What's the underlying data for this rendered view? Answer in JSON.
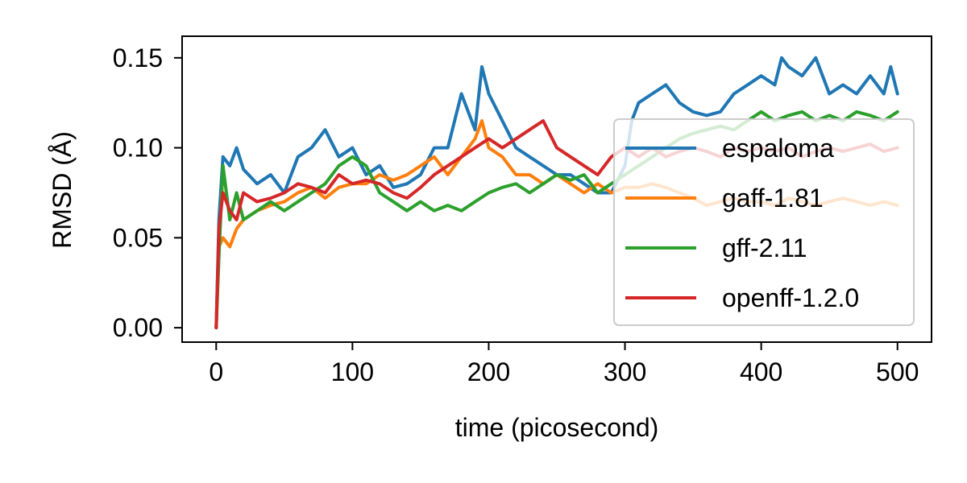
{
  "chart_data": {
    "type": "line",
    "title": "",
    "xlabel": "time (picosecond)",
    "ylabel": "RMSD (Å)",
    "xlim": [
      -25,
      525
    ],
    "ylim": [
      -0.008,
      0.162
    ],
    "xticks": [
      0,
      100,
      200,
      300,
      400,
      500
    ],
    "xtick_labels": [
      "0",
      "100",
      "200",
      "300",
      "400",
      "500"
    ],
    "yticks": [
      0.0,
      0.05,
      0.1,
      0.15
    ],
    "ytick_labels": [
      "0.00",
      "0.05",
      "0.10",
      "0.15"
    ],
    "grid": false,
    "legend_position": "right",
    "series": [
      {
        "name": "espaloma",
        "color": "#1f77b4",
        "x": [
          0,
          2,
          5,
          10,
          15,
          20,
          30,
          40,
          50,
          60,
          70,
          80,
          90,
          100,
          110,
          120,
          130,
          140,
          150,
          160,
          170,
          180,
          190,
          195,
          200,
          210,
          220,
          230,
          240,
          250,
          260,
          270,
          280,
          290,
          300,
          305,
          310,
          320,
          330,
          340,
          350,
          360,
          370,
          380,
          390,
          400,
          410,
          415,
          420,
          430,
          440,
          450,
          460,
          470,
          480,
          490,
          495,
          500
        ],
        "y": [
          0.0,
          0.06,
          0.095,
          0.09,
          0.1,
          0.088,
          0.08,
          0.085,
          0.075,
          0.095,
          0.1,
          0.11,
          0.095,
          0.1,
          0.085,
          0.09,
          0.078,
          0.08,
          0.085,
          0.1,
          0.1,
          0.13,
          0.11,
          0.145,
          0.13,
          0.115,
          0.1,
          0.095,
          0.09,
          0.085,
          0.085,
          0.08,
          0.075,
          0.075,
          0.09,
          0.115,
          0.125,
          0.13,
          0.135,
          0.125,
          0.12,
          0.118,
          0.12,
          0.13,
          0.135,
          0.14,
          0.135,
          0.15,
          0.145,
          0.14,
          0.15,
          0.13,
          0.135,
          0.13,
          0.14,
          0.13,
          0.145,
          0.13
        ]
      },
      {
        "name": "gaff-1.81",
        "color": "#ff7f0e",
        "x": [
          0,
          2,
          5,
          10,
          15,
          20,
          30,
          40,
          50,
          60,
          70,
          80,
          90,
          100,
          110,
          120,
          130,
          140,
          150,
          160,
          170,
          180,
          190,
          195,
          200,
          210,
          220,
          230,
          240,
          250,
          260,
          270,
          280,
          290,
          300,
          310,
          320,
          330,
          340,
          350,
          360,
          370,
          380,
          390,
          400,
          410,
          420,
          430,
          440,
          450,
          460,
          470,
          480,
          490,
          500
        ],
        "y": [
          0.0,
          0.045,
          0.05,
          0.045,
          0.055,
          0.06,
          0.065,
          0.068,
          0.07,
          0.075,
          0.078,
          0.072,
          0.078,
          0.08,
          0.08,
          0.085,
          0.082,
          0.085,
          0.09,
          0.095,
          0.085,
          0.095,
          0.105,
          0.115,
          0.1,
          0.095,
          0.085,
          0.085,
          0.08,
          0.085,
          0.08,
          0.075,
          0.08,
          0.075,
          0.078,
          0.078,
          0.08,
          0.078,
          0.075,
          0.072,
          0.068,
          0.07,
          0.072,
          0.07,
          0.07,
          0.068,
          0.072,
          0.07,
          0.068,
          0.07,
          0.072,
          0.07,
          0.068,
          0.07,
          0.068
        ]
      },
      {
        "name": "gff-2.11",
        "color": "#2ca02c",
        "x": [
          0,
          2,
          5,
          10,
          15,
          20,
          30,
          40,
          50,
          60,
          70,
          80,
          90,
          100,
          110,
          120,
          130,
          140,
          150,
          160,
          170,
          180,
          190,
          200,
          210,
          220,
          230,
          240,
          250,
          260,
          270,
          280,
          290,
          300,
          310,
          320,
          330,
          340,
          350,
          360,
          370,
          380,
          390,
          400,
          410,
          420,
          430,
          440,
          450,
          460,
          470,
          480,
          490,
          500
        ],
        "y": [
          0.0,
          0.04,
          0.09,
          0.06,
          0.075,
          0.06,
          0.065,
          0.07,
          0.065,
          0.07,
          0.075,
          0.08,
          0.09,
          0.095,
          0.09,
          0.075,
          0.07,
          0.065,
          0.07,
          0.065,
          0.068,
          0.065,
          0.07,
          0.075,
          0.078,
          0.08,
          0.075,
          0.08,
          0.085,
          0.082,
          0.085,
          0.075,
          0.08,
          0.085,
          0.09,
          0.095,
          0.1,
          0.105,
          0.108,
          0.11,
          0.112,
          0.11,
          0.115,
          0.12,
          0.115,
          0.118,
          0.12,
          0.115,
          0.118,
          0.115,
          0.12,
          0.118,
          0.115,
          0.12
        ]
      },
      {
        "name": "openff-1.2.0",
        "color": "#d62728",
        "x": [
          0,
          2,
          5,
          10,
          15,
          20,
          30,
          40,
          50,
          60,
          70,
          80,
          90,
          100,
          110,
          120,
          130,
          140,
          150,
          160,
          170,
          180,
          190,
          200,
          210,
          220,
          230,
          240,
          250,
          260,
          270,
          280,
          290,
          300,
          310,
          320,
          330,
          340,
          350,
          360,
          370,
          380,
          390,
          400,
          410,
          420,
          430,
          440,
          450,
          460,
          470,
          480,
          490,
          500
        ],
        "y": [
          0.0,
          0.055,
          0.075,
          0.065,
          0.06,
          0.075,
          0.07,
          0.072,
          0.075,
          0.08,
          0.078,
          0.075,
          0.085,
          0.08,
          0.082,
          0.08,
          0.075,
          0.072,
          0.078,
          0.085,
          0.09,
          0.095,
          0.1,
          0.105,
          0.1,
          0.105,
          0.11,
          0.115,
          0.1,
          0.095,
          0.09,
          0.085,
          0.095,
          0.1,
          0.095,
          0.1,
          0.095,
          0.098,
          0.1,
          0.098,
          0.095,
          0.1,
          0.098,
          0.1,
          0.098,
          0.1,
          0.095,
          0.098,
          0.1,
          0.098,
          0.1,
          0.102,
          0.098,
          0.1
        ]
      }
    ]
  }
}
